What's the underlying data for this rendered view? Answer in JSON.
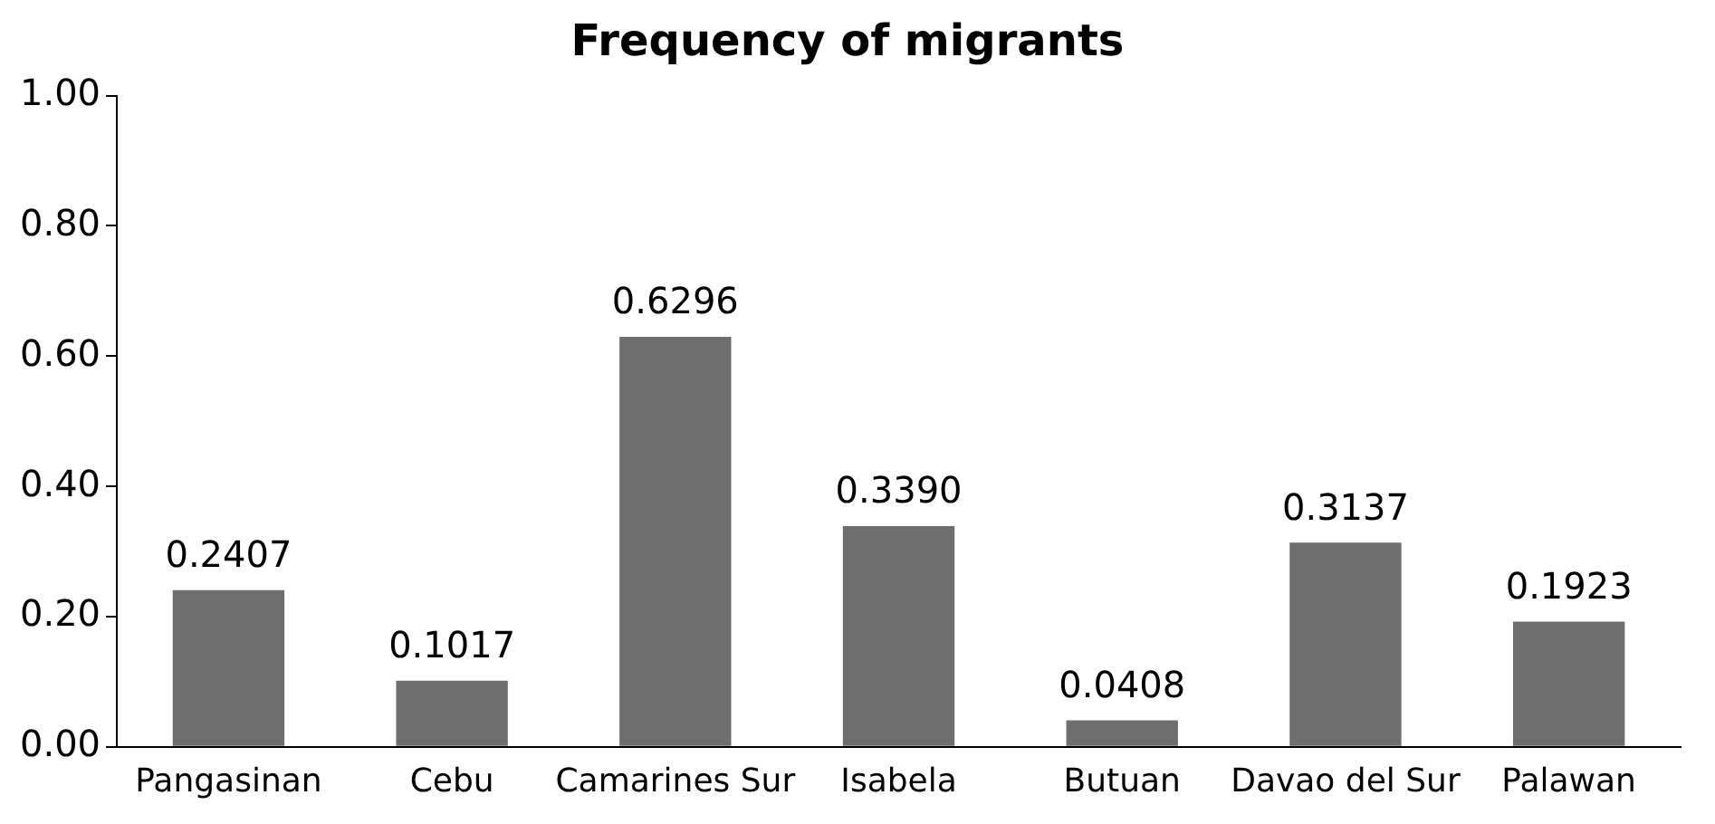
{
  "chart_data": {
    "type": "bar",
    "title": "Frequency of migrants",
    "categories": [
      "Pangasinan",
      "Cebu",
      "Camarines Sur",
      "Isabela",
      "Butuan",
      "Davao del Sur",
      "Palawan"
    ],
    "values": [
      0.2407,
      0.1017,
      0.6296,
      0.339,
      0.0408,
      0.3137,
      0.1923
    ],
    "value_labels": [
      "0.2407",
      "0.1017",
      "0.6296",
      "0.3390",
      "0.0408",
      "0.3137",
      "0.1923"
    ],
    "color": "#6e6e6e",
    "ylim": [
      0,
      1
    ],
    "yticks": [
      {
        "value": 0,
        "label": "0.00"
      },
      {
        "value": 0.2,
        "label": "0.20"
      },
      {
        "value": 0.4,
        "label": "0.40"
      },
      {
        "value": 0.6,
        "label": "0.60"
      },
      {
        "value": 0.8,
        "label": "0.80"
      },
      {
        "value": 1,
        "label": "1.00"
      }
    ],
    "grid": false,
    "legend": false
  }
}
